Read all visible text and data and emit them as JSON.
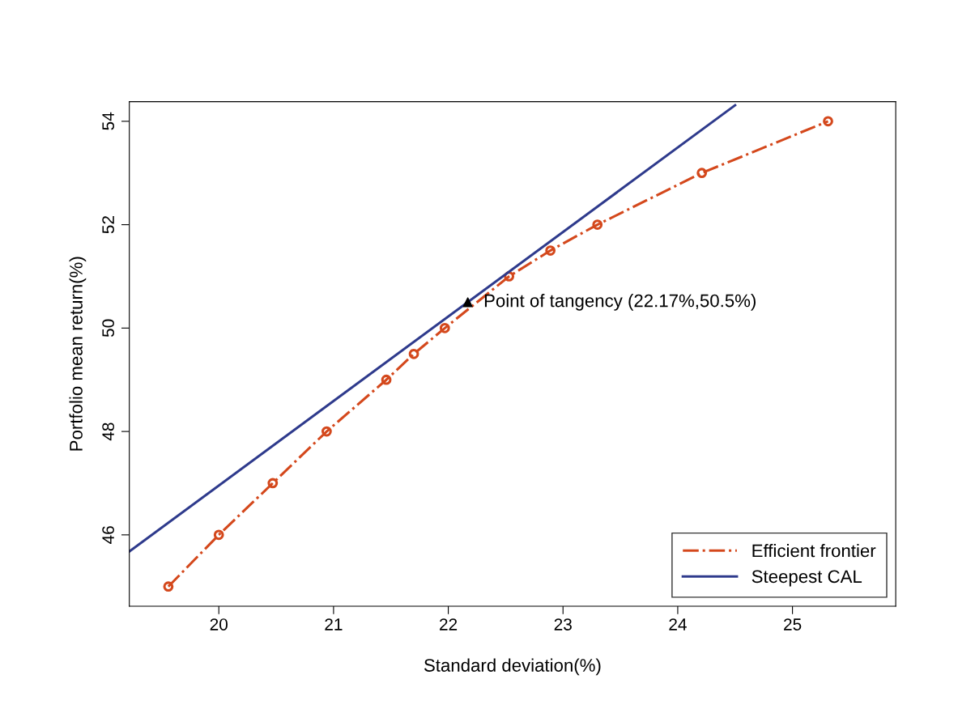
{
  "chart_data": {
    "type": "line",
    "xlabel": "Standard deviation(%)",
    "ylabel": "Portfolio mean return(%)",
    "xlim": [
      19.22,
      25.9
    ],
    "ylim": [
      44.62,
      54.38
    ],
    "xticks": [
      20,
      21,
      22,
      23,
      24,
      25
    ],
    "yticks": [
      46,
      48,
      50,
      52,
      54
    ],
    "grid": false,
    "legend": "bottom right",
    "series": [
      {
        "name": "Efficient frontier",
        "color": "#d4481c",
        "line_style": "dashdot",
        "marker": "circle",
        "x": [
          19.56,
          20.0,
          20.47,
          20.94,
          21.46,
          21.7,
          21.97,
          22.53,
          22.89,
          23.3,
          24.21,
          25.31
        ],
        "values": [
          45,
          46,
          47,
          48,
          49,
          49.5,
          50,
          51,
          51.5,
          52,
          53,
          54
        ]
      },
      {
        "name": "Steepest CAL",
        "color": "#2e3a8c",
        "line_style": "solid",
        "marker": "none",
        "x": [
          19.22,
          24.5
        ],
        "values": [
          45.68,
          54.31
        ]
      },
      {
        "type": "scatter",
        "color": "#000000",
        "marker": "triangle",
        "x": [
          22.17
        ],
        "values": [
          50.5
        ]
      }
    ],
    "annotations": [
      {
        "text": "Point of tangency (22.17%,50.5%)",
        "x": 22.17,
        "y": 50.5
      }
    ]
  }
}
